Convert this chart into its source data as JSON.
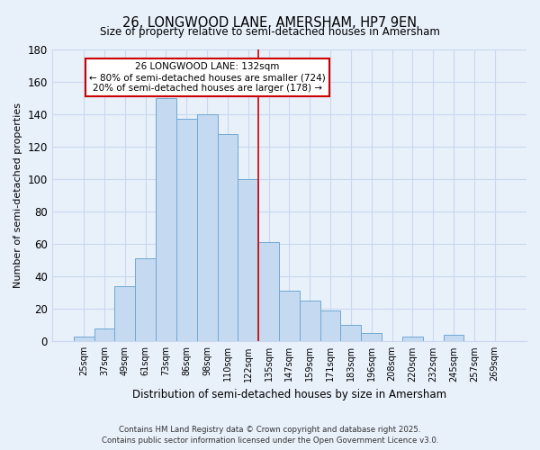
{
  "title": "26, LONGWOOD LANE, AMERSHAM, HP7 9EN",
  "subtitle": "Size of property relative to semi-detached houses in Amersham",
  "xlabel": "Distribution of semi-detached houses by size in Amersham",
  "ylabel": "Number of semi-detached properties",
  "bin_labels": [
    "25sqm",
    "37sqm",
    "49sqm",
    "61sqm",
    "73sqm",
    "86sqm",
    "98sqm",
    "110sqm",
    "122sqm",
    "135sqm",
    "147sqm",
    "159sqm",
    "171sqm",
    "183sqm",
    "196sqm",
    "208sqm",
    "220sqm",
    "232sqm",
    "245sqm",
    "257sqm",
    "269sqm"
  ],
  "bar_heights": [
    3,
    8,
    34,
    51,
    150,
    137,
    140,
    128,
    100,
    61,
    31,
    25,
    19,
    10,
    5,
    0,
    3,
    0,
    4,
    0,
    0
  ],
  "bar_color": "#c5d9f0",
  "bar_edge_color": "#6fa8d4",
  "highlight_line_color": "#cc0000",
  "annotation_title": "26 LONGWOOD LANE: 132sqm",
  "annotation_line1": "← 80% of semi-detached houses are smaller (724)",
  "annotation_line2": "20% of semi-detached houses are larger (178) →",
  "annotation_box_facecolor": "#ffffff",
  "annotation_box_edgecolor": "#cc0000",
  "ylim": [
    0,
    180
  ],
  "yticks": [
    0,
    20,
    40,
    60,
    80,
    100,
    120,
    140,
    160,
    180
  ],
  "footer1": "Contains HM Land Registry data © Crown copyright and database right 2025.",
  "footer2": "Contains public sector information licensed under the Open Government Licence v3.0.",
  "bg_color": "#e8f0fa",
  "grid_color": "#c8d8ee"
}
